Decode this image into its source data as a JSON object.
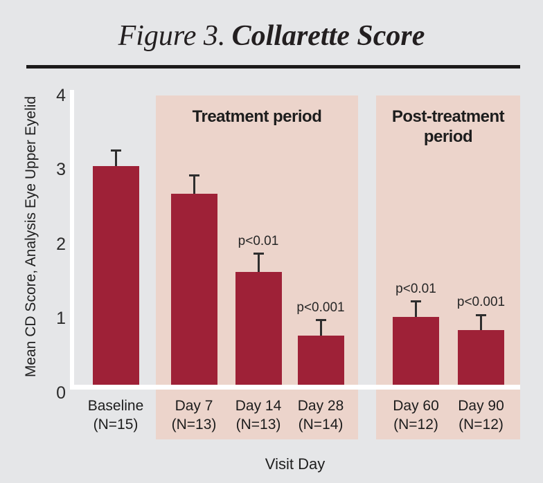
{
  "page": {
    "background_color": "#e5e6e8"
  },
  "title": {
    "prefix": "Figure 3.",
    "main": "Collarette Score"
  },
  "chart_data": {
    "type": "bar",
    "title": "Figure 3. Collarette Score",
    "ylabel": "Mean CD Score, Analysis Eye Upper Eyelid",
    "xlabel": "Visit Day",
    "ylim": [
      0,
      4
    ],
    "yticks": [
      0,
      1,
      2,
      3,
      4
    ],
    "grid": "off",
    "bar_color": "#9e2137",
    "error_bar_color": "#2e2e2e",
    "axis_color": "#ffffff",
    "region_color": "#ecd4cb",
    "bars": [
      {
        "label": "Baseline",
        "n_label": "(N=15)",
        "value": 3.05,
        "error_upper": 0.21,
        "p_value": ""
      },
      {
        "label": "Day 7",
        "n_label": "(N=13)",
        "value": 2.68,
        "error_upper": 0.24,
        "p_value": ""
      },
      {
        "label": "Day 14",
        "n_label": "(N=13)",
        "value": 1.63,
        "error_upper": 0.24,
        "p_value": "p<0.01"
      },
      {
        "label": "Day 28",
        "n_label": "(N=14)",
        "value": 0.77,
        "error_upper": 0.21,
        "p_value": "p<0.001"
      },
      {
        "label": "Day 60",
        "n_label": "(N=12)",
        "value": 1.02,
        "error_upper": 0.21,
        "p_value": "p<0.01"
      },
      {
        "label": "Day 90",
        "n_label": "(N=12)",
        "value": 0.85,
        "error_upper": 0.2,
        "p_value": "p<0.001"
      }
    ],
    "regions": [
      {
        "label": "Treatment period",
        "covers": [
          "Day 7",
          "Day 14",
          "Day 28"
        ]
      },
      {
        "label": "Post-treatment period",
        "covers": [
          "Day 60",
          "Day 90"
        ]
      }
    ]
  }
}
